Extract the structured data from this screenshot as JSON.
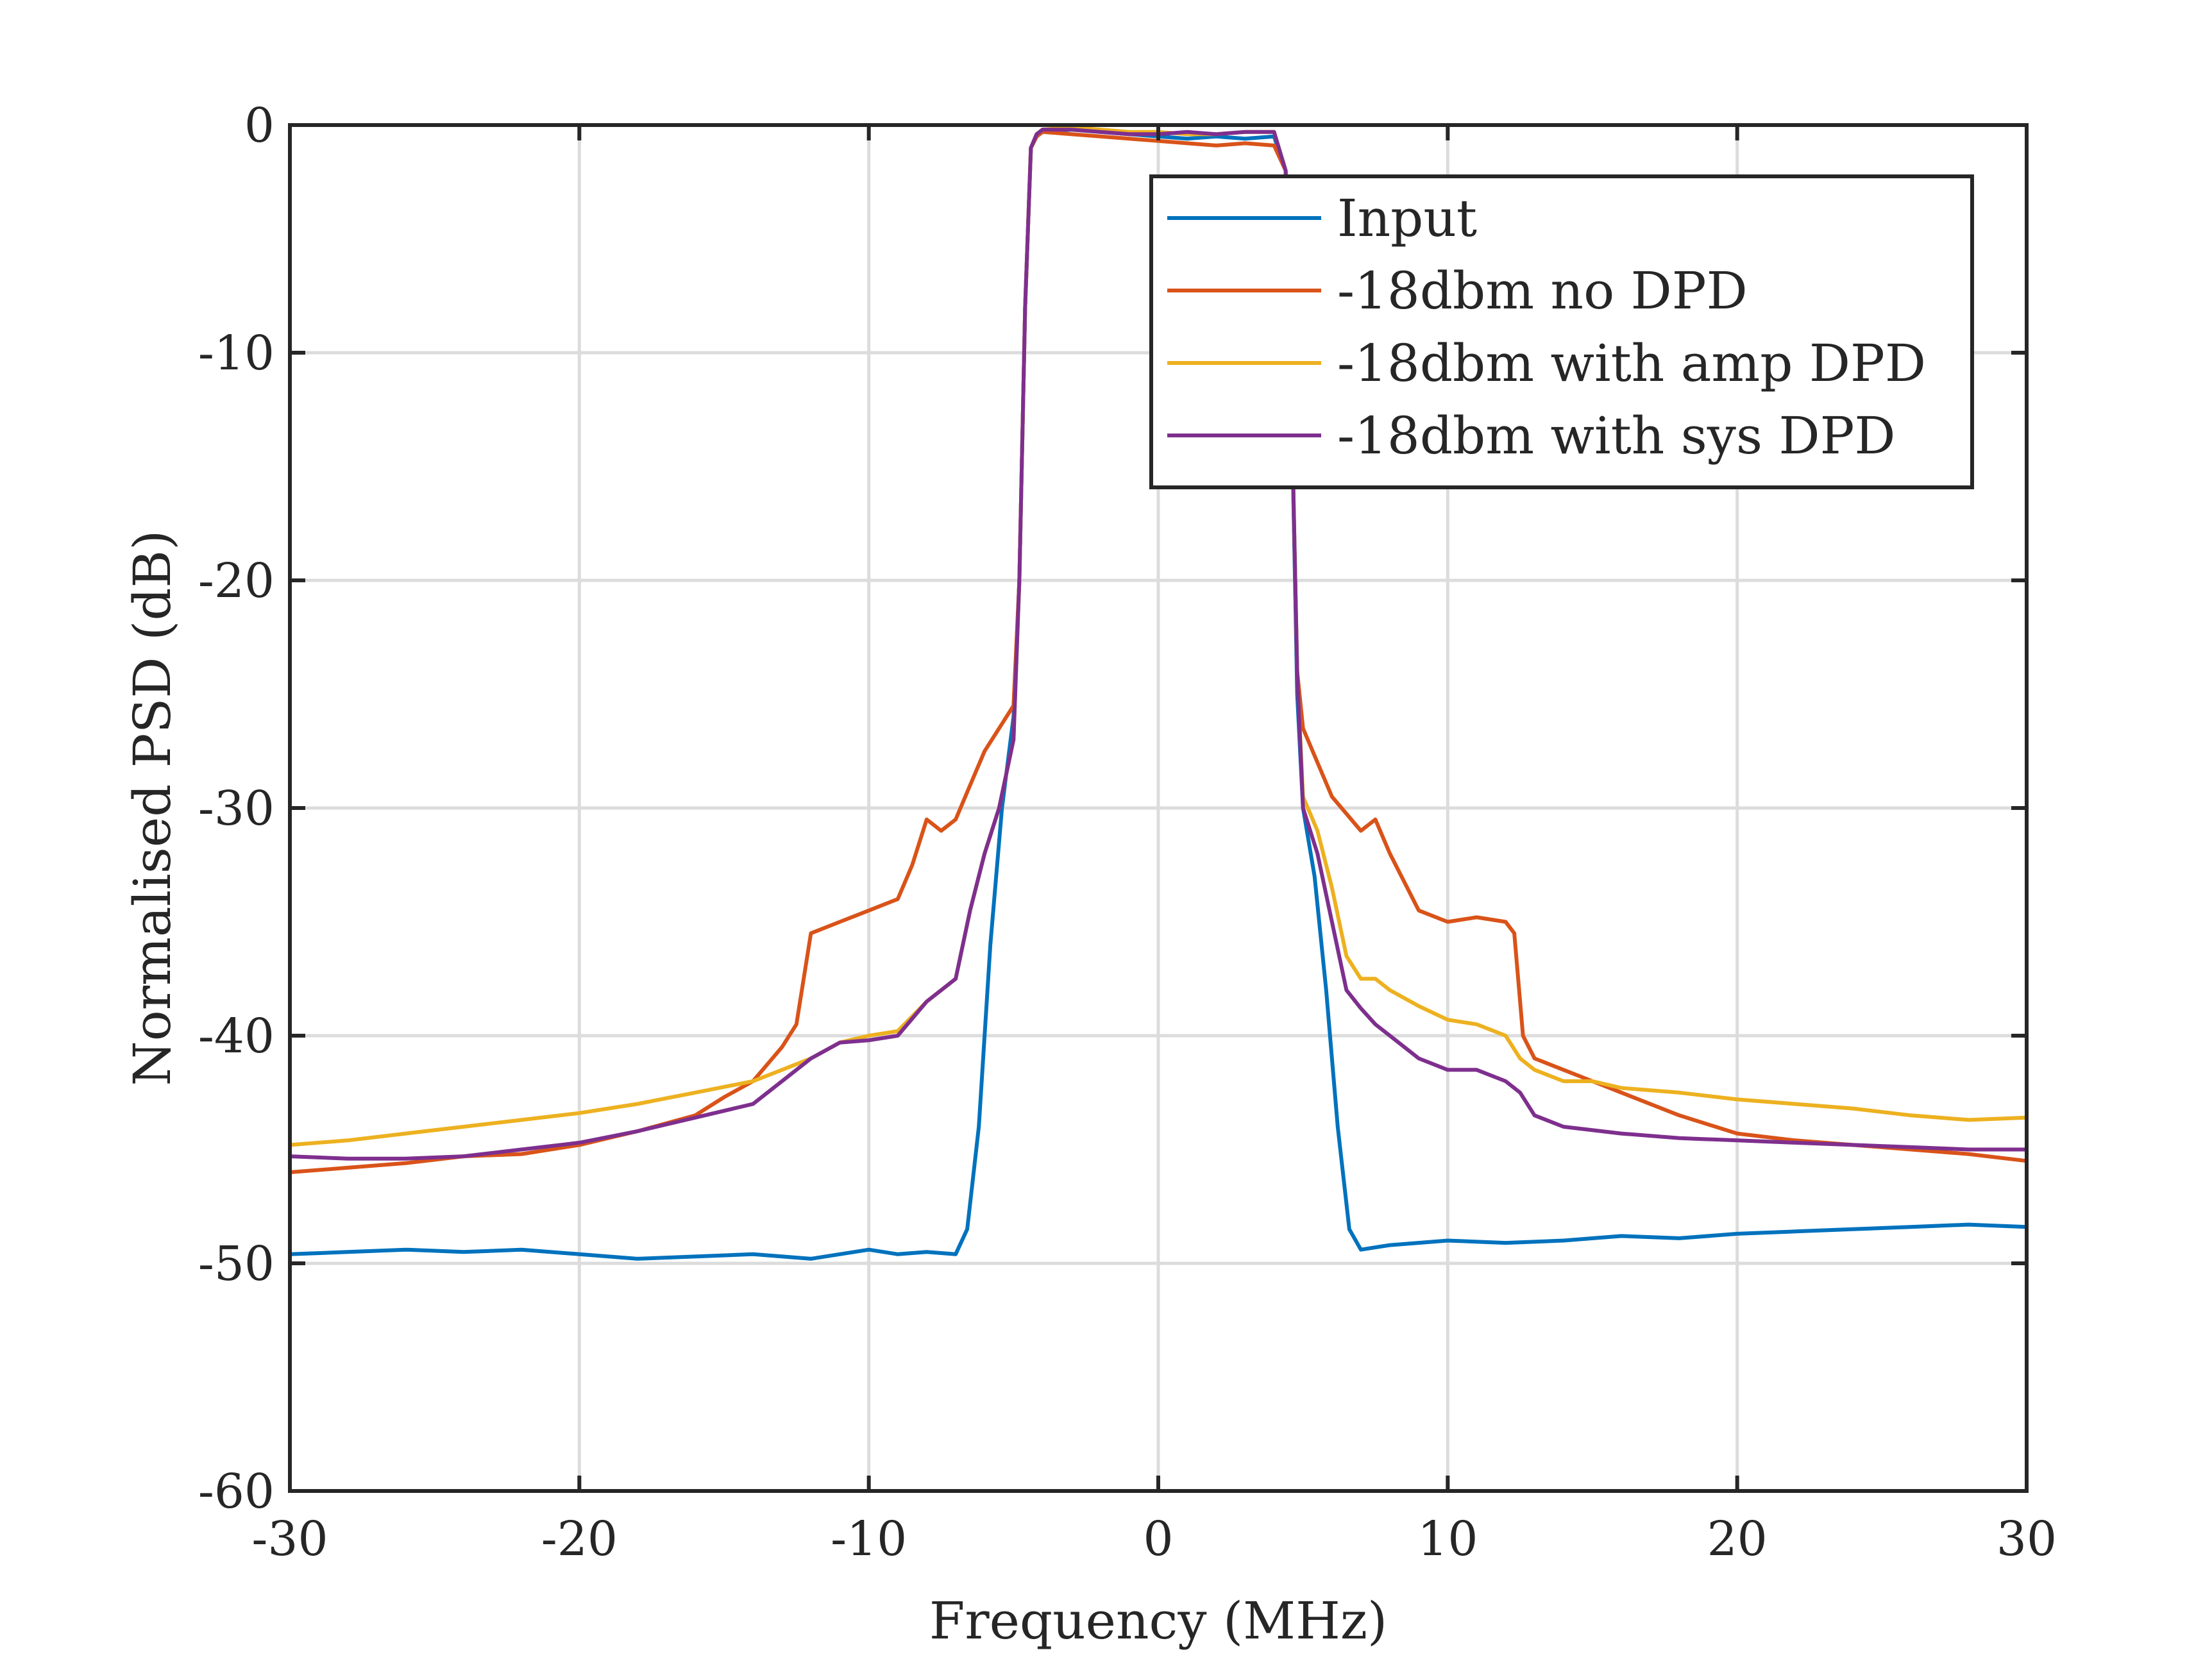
{
  "chart_data": {
    "type": "line",
    "title": "",
    "xlabel": "Frequency (MHz)",
    "ylabel": "Normalised PSD (dB)",
    "xlim": [
      -30,
      30
    ],
    "ylim": [
      -60,
      0
    ],
    "xticks": [
      -30,
      -20,
      -10,
      0,
      10,
      20,
      30
    ],
    "yticks": [
      -60,
      -50,
      -40,
      -30,
      -20,
      -10,
      0
    ],
    "xtick_labels": [
      "-30",
      "-20",
      "-10",
      "0",
      "10",
      "20",
      "30"
    ],
    "ytick_labels": [
      "-60",
      "-50",
      "-40",
      "-30",
      "-20",
      "-10",
      "0"
    ],
    "grid": true,
    "legend_position": "top-right",
    "colors": {
      "axis": "#262626",
      "grid": "#dcdcdc"
    },
    "series": [
      {
        "name": "Input",
        "color": "#0072BD",
        "x": [
          -30,
          -28,
          -26,
          -24,
          -22,
          -20,
          -18,
          -16,
          -14,
          -12,
          -10,
          -9,
          -8,
          -7,
          -6.6,
          -6.2,
          -5.8,
          -5.4,
          -5,
          -4.8,
          -4.6,
          -4.4,
          -4.2,
          -4,
          -3,
          -2,
          -1,
          0,
          1,
          2,
          3,
          4,
          4.4,
          4.6,
          4.8,
          5,
          5.4,
          5.8,
          6.2,
          6.6,
          7,
          8,
          10,
          12,
          14,
          16,
          18,
          20,
          22,
          24,
          26,
          28,
          30
        ],
        "y": [
          -49.6,
          -49.5,
          -49.4,
          -49.5,
          -49.4,
          -49.6,
          -49.8,
          -49.7,
          -49.6,
          -49.8,
          -49.4,
          -49.6,
          -49.5,
          -49.6,
          -48.5,
          -44,
          -36,
          -30,
          -26,
          -20,
          -8,
          -1,
          -0.5,
          -0.3,
          -0.2,
          -0.3,
          -0.4,
          -0.5,
          -0.6,
          -0.5,
          -0.6,
          -0.5,
          -2,
          -12,
          -25,
          -30,
          -33,
          -38,
          -44,
          -48.5,
          -49.4,
          -49.2,
          -49.0,
          -49.1,
          -49.0,
          -48.8,
          -48.9,
          -48.7,
          -48.6,
          -48.5,
          -48.4,
          -48.3,
          -48.4
        ]
      },
      {
        "name": "-18dbm no DPD",
        "color": "#D95319",
        "x": [
          -30,
          -28,
          -26,
          -24,
          -22,
          -20,
          -18,
          -16,
          -15,
          -14,
          -13,
          -12.5,
          -12,
          -11,
          -10,
          -9,
          -8.5,
          -8,
          -7.5,
          -7,
          -6.5,
          -6,
          -5.5,
          -5,
          -4.8,
          -4.6,
          -4.4,
          -4.2,
          -4,
          -3,
          -2,
          -1,
          0,
          1,
          2,
          3,
          4,
          4.4,
          4.6,
          4.8,
          5,
          5.5,
          6,
          7,
          7.5,
          8,
          9,
          10,
          11,
          12,
          12.3,
          12.6,
          13,
          14,
          15,
          16,
          18,
          20,
          22,
          24,
          26,
          28,
          30
        ],
        "y": [
          -46,
          -45.8,
          -45.6,
          -45.3,
          -45.2,
          -44.8,
          -44.2,
          -43.5,
          -42.7,
          -42,
          -40.5,
          -39.5,
          -35.5,
          -35,
          -34.5,
          -34,
          -32.5,
          -30.5,
          -31,
          -30.5,
          -29,
          -27.5,
          -26.5,
          -25.5,
          -20,
          -8,
          -1,
          -0.5,
          -0.3,
          -0.4,
          -0.5,
          -0.6,
          -0.7,
          -0.8,
          -0.9,
          -0.8,
          -0.9,
          -2,
          -12,
          -24,
          -26.5,
          -28,
          -29.5,
          -31,
          -30.5,
          -32,
          -34.5,
          -35,
          -34.8,
          -35,
          -35.5,
          -40,
          -41,
          -41.5,
          -42,
          -42.5,
          -43.5,
          -44.3,
          -44.6,
          -44.8,
          -45,
          -45.2,
          -45.5
        ]
      },
      {
        "name": "-18dbm with amp DPD",
        "color": "#EDB120",
        "x": [
          -30,
          -28,
          -26,
          -24,
          -22,
          -20,
          -18,
          -16,
          -14,
          -13,
          -12,
          -11,
          -10,
          -9,
          -8,
          -7,
          -6.5,
          -6,
          -5.5,
          -5,
          -4.8,
          -4.6,
          -4.4,
          -4.2,
          -4,
          -3,
          -2,
          -1,
          0,
          1,
          2,
          3,
          4,
          4.4,
          4.6,
          4.8,
          5,
          5.5,
          6,
          6.5,
          7,
          7.5,
          8,
          9,
          10,
          11,
          12,
          12.5,
          13,
          14,
          15,
          16,
          18,
          20,
          22,
          24,
          26,
          28,
          30
        ],
        "y": [
          -44.8,
          -44.6,
          -44.3,
          -44.0,
          -43.7,
          -43.4,
          -43.0,
          -42.5,
          -42,
          -41.5,
          -41,
          -40.3,
          -40,
          -39.8,
          -38.5,
          -37.5,
          -34.5,
          -32,
          -30,
          -27,
          -20,
          -8,
          -1,
          -0.4,
          -0.2,
          -0.1,
          -0.2,
          -0.3,
          -0.3,
          -0.4,
          -0.4,
          -0.3,
          -0.3,
          -2,
          -12,
          -24,
          -29.5,
          -31,
          -33.5,
          -36.5,
          -37.5,
          -37.5,
          -38,
          -38.7,
          -39.3,
          -39.5,
          -40,
          -41,
          -41.5,
          -42,
          -42,
          -42.3,
          -42.5,
          -42.8,
          -43.0,
          -43.2,
          -43.5,
          -43.7,
          -43.6
        ]
      },
      {
        "name": "-18dbm with sys DPD",
        "color": "#7E2F8E",
        "x": [
          -30,
          -28,
          -26,
          -24,
          -22,
          -20,
          -18,
          -16,
          -14,
          -13,
          -12,
          -11,
          -10,
          -9,
          -8,
          -7,
          -6.5,
          -6,
          -5.5,
          -5,
          -4.8,
          -4.6,
          -4.4,
          -4.2,
          -4,
          -3,
          -2,
          -1,
          0,
          1,
          2,
          3,
          4,
          4.4,
          4.6,
          4.8,
          5,
          5.5,
          6,
          6.5,
          7,
          7.5,
          8,
          9,
          10,
          11,
          12,
          12.5,
          13,
          14,
          16,
          18,
          20,
          22,
          24,
          26,
          28,
          30
        ],
        "y": [
          -45.3,
          -45.4,
          -45.4,
          -45.3,
          -45.0,
          -44.7,
          -44.2,
          -43.6,
          -43,
          -42,
          -41,
          -40.3,
          -40.2,
          -40.0,
          -38.5,
          -37.5,
          -34.5,
          -32,
          -30,
          -27,
          -20,
          -8,
          -1,
          -0.4,
          -0.2,
          -0.2,
          -0.3,
          -0.4,
          -0.4,
          -0.3,
          -0.4,
          -0.3,
          -0.3,
          -2,
          -12,
          -24,
          -30,
          -32,
          -35,
          -38,
          -38.8,
          -39.5,
          -40,
          -41,
          -41.5,
          -41.5,
          -42,
          -42.5,
          -43.5,
          -44,
          -44.3,
          -44.5,
          -44.6,
          -44.7,
          -44.8,
          -44.9,
          -45.0,
          -45.0
        ]
      }
    ]
  }
}
